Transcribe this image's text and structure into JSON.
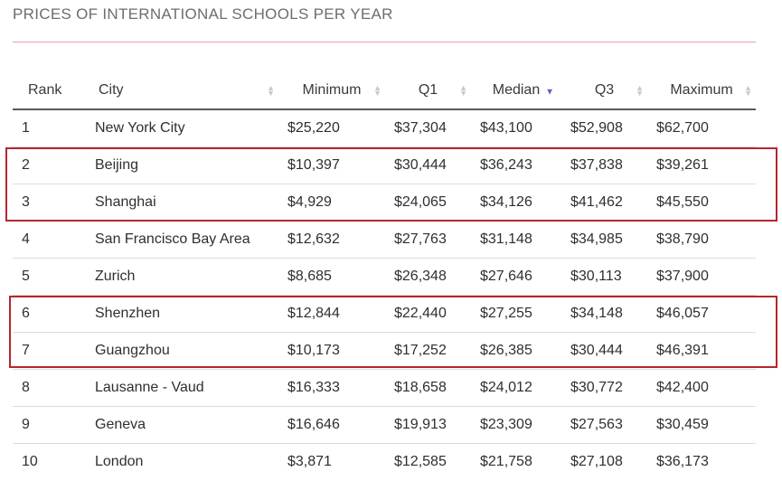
{
  "title": "PRICES OF INTERNATIONAL SCHOOLS PER YEAR",
  "columns": [
    "Rank",
    "City",
    "Minimum",
    "Q1",
    "Median",
    "Q3",
    "Maximum"
  ],
  "sort": {
    "column": "Median",
    "direction": "descending"
  },
  "highlight_color": "#b3272d",
  "rows": [
    {
      "rank": "1",
      "city": "New York City",
      "min": "$25,220",
      "q1": "$37,304",
      "median": "$43,100",
      "q3": "$52,908",
      "max": "$62,700"
    },
    {
      "rank": "2",
      "city": "Beijing",
      "min": "$10,397",
      "q1": "$30,444",
      "median": "$36,243",
      "q3": "$37,838",
      "max": "$39,261"
    },
    {
      "rank": "3",
      "city": "Shanghai",
      "min": "$4,929",
      "q1": "$24,065",
      "median": "$34,126",
      "q3": "$41,462",
      "max": "$45,550"
    },
    {
      "rank": "4",
      "city": "San Francisco Bay Area",
      "min": "$12,632",
      "q1": "$27,763",
      "median": "$31,148",
      "q3": "$34,985",
      "max": "$38,790"
    },
    {
      "rank": "5",
      "city": "Zurich",
      "min": "$8,685",
      "q1": "$26,348",
      "median": "$27,646",
      "q3": "$30,113",
      "max": "$37,900"
    },
    {
      "rank": "6",
      "city": "Shenzhen",
      "min": "$12,844",
      "q1": "$22,440",
      "median": "$27,255",
      "q3": "$34,148",
      "max": "$46,057"
    },
    {
      "rank": "7",
      "city": "Guangzhou",
      "min": "$10,173",
      "q1": "$17,252",
      "median": "$26,385",
      "q3": "$30,444",
      "max": "$46,391"
    },
    {
      "rank": "8",
      "city": "Lausanne - Vaud",
      "min": "$16,333",
      "q1": "$18,658",
      "median": "$24,012",
      "q3": "$30,772",
      "max": "$42,400"
    },
    {
      "rank": "9",
      "city": "Geneva",
      "min": "$16,646",
      "q1": "$19,913",
      "median": "$23,309",
      "q3": "$27,563",
      "max": "$30,459"
    },
    {
      "rank": "10",
      "city": "London",
      "min": "$3,871",
      "q1": "$12,585",
      "median": "$21,758",
      "q3": "$27,108",
      "max": "$36,173"
    }
  ]
}
